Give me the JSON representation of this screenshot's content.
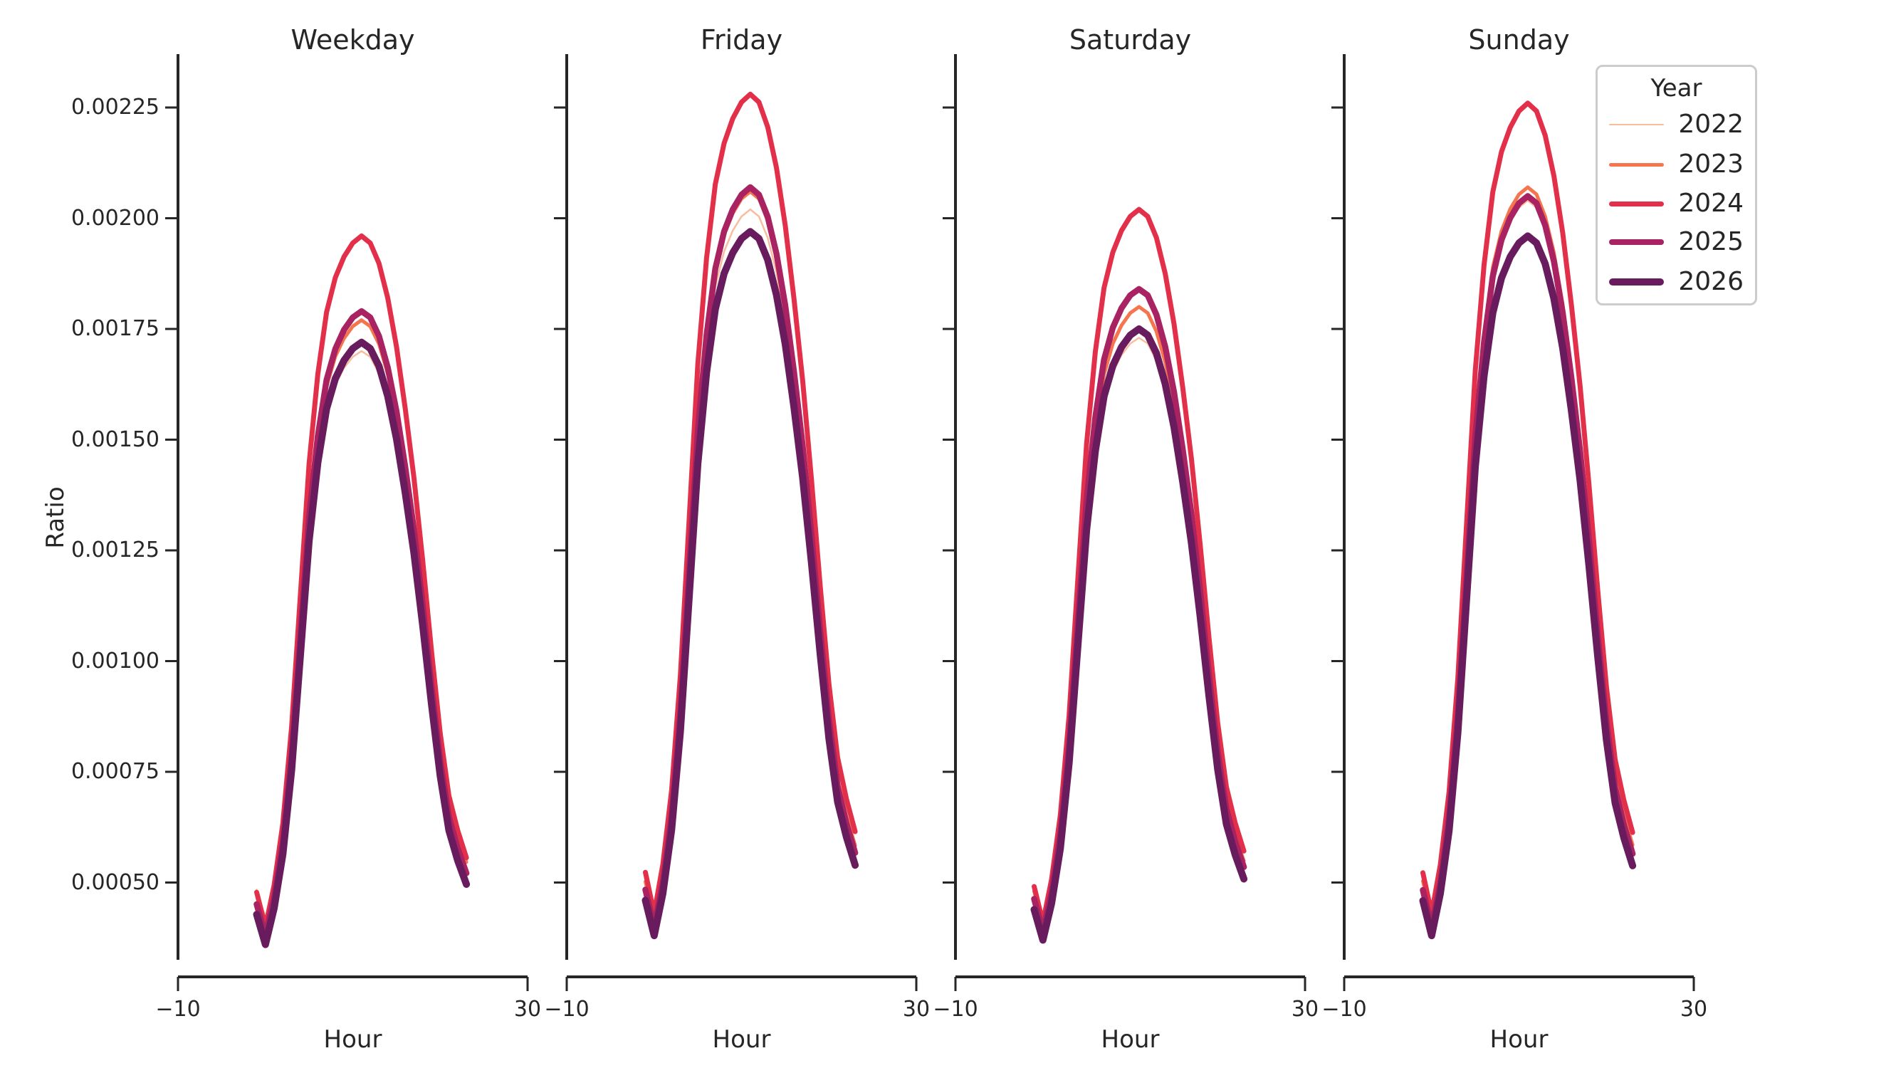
{
  "figure": {
    "background": "#ffffff",
    "text_color": "#262626",
    "axis_color": "#262626"
  },
  "axes": {
    "x_label": "Hour",
    "y_label": "Ratio",
    "x_ticks": [
      {
        "label": "−10",
        "value": -10
      },
      {
        "label": "30",
        "value": 30
      }
    ],
    "y_ticks": [
      {
        "label": "0.00225",
        "value": 0.00225
      },
      {
        "label": "0.00200",
        "value": 0.002
      },
      {
        "label": "0.00175",
        "value": 0.00175
      },
      {
        "label": "0.00150",
        "value": 0.0015
      },
      {
        "label": "0.00125",
        "value": 0.00125
      },
      {
        "label": "0.00100",
        "value": 0.001
      },
      {
        "label": "0.00075",
        "value": 0.00075
      },
      {
        "label": "0.00050",
        "value": 0.0005
      }
    ]
  },
  "legend": {
    "title": "Year",
    "entries": [
      {
        "label": "2022",
        "color": "#f9bd9d",
        "linewidth": 2.5
      },
      {
        "label": "2023",
        "color": "#f5764e",
        "linewidth": 5
      },
      {
        "label": "2024",
        "color": "#e3304a",
        "linewidth": 7
      },
      {
        "label": "2025",
        "color": "#a92262",
        "linewidth": 8.5
      },
      {
        "label": "2026",
        "color": "#681c5e",
        "linewidth": 10
      }
    ]
  },
  "chart_data": {
    "type": "line",
    "title": "",
    "xlabel": "Hour",
    "ylabel": "Ratio",
    "xlim": [
      -10,
      30
    ],
    "ylim": [
      0.0003,
      0.00236
    ],
    "grid": false,
    "legend_title": "Year",
    "legend_position": "upper right",
    "x": [
      -1,
      0,
      1,
      2,
      3,
      4,
      5,
      6,
      7,
      8,
      9,
      10,
      11,
      12,
      13,
      14,
      15,
      16,
      17,
      18,
      19,
      20,
      21,
      22,
      23
    ],
    "facets": [
      {
        "title": "Weekday",
        "series": [
          {
            "name": "2022",
            "color": "#f9bd9d",
            "linewidth": 2.5,
            "values": [
              0.000484,
              0.00042,
              0.000497,
              0.000612,
              0.000791,
              0.001034,
              0.001278,
              0.001444,
              0.001559,
              0.001623,
              0.001662,
              0.001687,
              0.0017,
              0.001687,
              0.001649,
              0.001585,
              0.001495,
              0.00138,
              0.001252,
              0.001098,
              0.000932,
              0.000778,
              0.000663,
              0.000599,
              0.000548
            ]
          },
          {
            "name": "2023",
            "color": "#f5764e",
            "linewidth": 5,
            "values": [
              0.000478,
              0.00041,
              0.000492,
              0.000614,
              0.000804,
              0.001063,
              0.001321,
              0.001498,
              0.00162,
              0.001688,
              0.001729,
              0.001756,
              0.00177,
              0.001756,
              0.001716,
              0.001648,
              0.001552,
              0.00143,
              0.001294,
              0.001131,
              0.000954,
              0.000791,
              0.000668,
              0.0006,
              0.000546
            ]
          },
          {
            "name": "2024",
            "color": "#e3304a",
            "linewidth": 7,
            "values": [
              0.000478,
              0.0004,
              0.000494,
              0.000634,
              0.000852,
              0.001149,
              0.001445,
              0.001648,
              0.001788,
              0.001866,
              0.001913,
              0.001944,
              0.00196,
              0.001944,
              0.001898,
              0.00182,
              0.00171,
              0.00157,
              0.001414,
              0.001227,
              0.001024,
              0.000837,
              0.000696,
              0.000618,
              0.000556
            ]
          },
          {
            "name": "2025",
            "color": "#a92262",
            "linewidth": 8.5,
            "values": [
              0.000451,
              0.00038,
              0.000465,
              0.000592,
              0.000789,
              0.001057,
              0.001325,
              0.001508,
              0.001635,
              0.001705,
              0.001748,
              0.001776,
              0.00179,
              0.001776,
              0.001734,
              0.001663,
              0.001564,
              0.001438,
              0.001297,
              0.001127,
              0.000944,
              0.000775,
              0.000648,
              0.000577,
              0.000521
            ]
          },
          {
            "name": "2026",
            "color": "#681c5e",
            "linewidth": 10,
            "values": [
              0.000428,
              0.00036,
              0.000442,
              0.000564,
              0.000754,
              0.001013,
              0.001271,
              0.001448,
              0.00157,
              0.001638,
              0.001679,
              0.001706,
              0.00172,
              0.001706,
              0.001666,
              0.001598,
              0.001502,
              0.00138,
              0.001244,
              0.001081,
              0.000904,
              0.000741,
              0.000618,
              0.00055,
              0.000496
            ]
          }
        ]
      },
      {
        "title": "Friday",
        "series": [
          {
            "name": "2022",
            "color": "#f9bd9d",
            "linewidth": 2.5,
            "values": [
              0.00051,
              0.00043,
              0.000525,
              0.000669,
              0.000891,
              0.001193,
              0.001495,
              0.001702,
              0.001845,
              0.001925,
              0.001972,
              0.002004,
              0.00202,
              0.002004,
              0.001956,
              0.001877,
              0.001766,
              0.001623,
              0.001464,
              0.001273,
              0.001066,
              0.000875,
              0.000732,
              0.000653,
              0.000589
            ]
          },
          {
            "name": "2023",
            "color": "#f5764e",
            "linewidth": 5,
            "values": [
              0.000502,
              0.00042,
              0.000518,
              0.000666,
              0.000896,
              0.001207,
              0.001519,
              0.001732,
              0.00188,
              0.001962,
              0.002011,
              0.002044,
              0.00206,
              0.002044,
              0.001994,
              0.001912,
              0.001798,
              0.00165,
              0.001486,
              0.001289,
              0.001076,
              0.000879,
              0.000732,
              0.00065,
              0.000584
            ]
          },
          {
            "name": "2024",
            "color": "#e3304a",
            "linewidth": 7,
            "values": [
              0.000523,
              0.00043,
              0.000541,
              0.000708,
              0.000967,
              0.001318,
              0.00167,
              0.00191,
              0.002077,
              0.002169,
              0.002225,
              0.002262,
              0.00228,
              0.002262,
              0.002206,
              0.002114,
              0.001984,
              0.001818,
              0.001633,
              0.001411,
              0.00117,
              0.000948,
              0.000782,
              0.000689,
              0.000615
            ]
          },
          {
            "name": "2025",
            "color": "#a92262",
            "linewidth": 8.5,
            "values": [
              0.000484,
              0.0004,
              0.0005,
              0.000651,
              0.000884,
              0.001202,
              0.001519,
              0.001736,
              0.001886,
              0.00197,
              0.00202,
              0.002053,
              0.00207,
              0.002053,
              0.002003,
              0.00192,
              0.001803,
              0.001653,
              0.001486,
              0.001285,
              0.001068,
              0.000868,
              0.000717,
              0.000634,
              0.000567
            ]
          },
          {
            "name": "2026",
            "color": "#681c5e",
            "linewidth": 10,
            "values": [
              0.00046,
              0.00038,
              0.000475,
              0.000619,
              0.000841,
              0.001143,
              0.001445,
              0.001652,
              0.001795,
              0.001875,
              0.001922,
              0.001954,
              0.00197,
              0.001954,
              0.001906,
              0.001827,
              0.001716,
              0.001573,
              0.001414,
              0.001223,
              0.001016,
              0.000825,
              0.000682,
              0.000603,
              0.000539
            ]
          }
        ]
      },
      {
        "title": "Saturday",
        "series": [
          {
            "name": "2022",
            "color": "#f9bd9d",
            "linewidth": 2.5,
            "values": [
              0.000486,
              0.00042,
              0.000499,
              0.000617,
              0.0008,
              0.001049,
              0.001298,
              0.001468,
              0.001586,
              0.001651,
              0.001691,
              0.001717,
              0.00173,
              0.001717,
              0.001678,
              0.001612,
              0.00152,
              0.001403,
              0.001272,
              0.001114,
              0.000944,
              0.000787,
              0.000669,
              0.000603,
              0.000551
            ]
          },
          {
            "name": "2023",
            "color": "#f5764e",
            "linewidth": 5,
            "values": [
              0.00048,
              0.00041,
              0.000493,
              0.000619,
              0.000813,
              0.001077,
              0.001341,
              0.001522,
              0.001647,
              0.001717,
              0.001758,
              0.001786,
              0.0018,
              0.001786,
              0.001744,
              0.001675,
              0.001578,
              0.001453,
              0.001314,
              0.001147,
              0.000966,
              0.000799,
              0.000674,
              0.000605,
              0.000549
            ]
          },
          {
            "name": "2024",
            "color": "#e3304a",
            "linewidth": 7,
            "values": [
              0.000491,
              0.00041,
              0.000507,
              0.000652,
              0.000877,
              0.001183,
              0.001489,
              0.001698,
              0.001843,
              0.001923,
              0.001972,
              0.002004,
              0.00202,
              0.002004,
              0.001956,
              0.001875,
              0.001762,
              0.001618,
              0.001457,
              0.001263,
              0.001054,
              0.000861,
              0.000716,
              0.000635,
              0.000571
            ]
          },
          {
            "name": "2025",
            "color": "#a92262",
            "linewidth": 8.5,
            "values": [
              0.000463,
              0.00039,
              0.000477,
              0.000608,
              0.000811,
              0.001086,
              0.001362,
              0.00155,
              0.001681,
              0.001753,
              0.001797,
              0.001826,
              0.00184,
              0.001826,
              0.001782,
              0.00171,
              0.001608,
              0.001478,
              0.001333,
              0.001159,
              0.00097,
              0.000796,
              0.000666,
              0.000593,
              0.000535
            ]
          },
          {
            "name": "2026",
            "color": "#681c5e",
            "linewidth": 10,
            "values": [
              0.000439,
              0.00037,
              0.000453,
              0.000577,
              0.00077,
              0.001032,
              0.001295,
              0.001474,
              0.001598,
              0.001667,
              0.001709,
              0.001736,
              0.00175,
              0.001736,
              0.001695,
              0.001626,
              0.001529,
              0.001405,
              0.001267,
              0.001101,
              0.000922,
              0.000756,
              0.000632,
              0.000563,
              0.000508
            ]
          }
        ]
      },
      {
        "title": "Sunday",
        "series": [
          {
            "name": "2022",
            "color": "#f9bd9d",
            "linewidth": 2.5,
            "values": [
              0.000511,
              0.00043,
              0.000527,
              0.000672,
              0.000897,
              0.001203,
              0.001509,
              0.001718,
              0.001863,
              0.001943,
              0.001992,
              0.002024,
              0.00204,
              0.002024,
              0.001976,
              0.001895,
              0.001782,
              0.001638,
              0.001477,
              0.001283,
              0.001074,
              0.000881,
              0.000736,
              0.000655,
              0.000591
            ]
          },
          {
            "name": "2023",
            "color": "#f5764e",
            "linewidth": 5,
            "values": [
              0.000503,
              0.00042,
              0.000519,
              0.000668,
              0.000899,
              0.001212,
              0.001526,
              0.00174,
              0.001889,
              0.001971,
              0.002021,
              0.002054,
              0.00207,
              0.002054,
              0.002004,
              0.001922,
              0.001806,
              0.001658,
              0.001493,
              0.001295,
              0.00108,
              0.000882,
              0.000734,
              0.000651,
              0.000585
            ]
          },
          {
            "name": "2024",
            "color": "#e3304a",
            "linewidth": 7,
            "values": [
              0.000522,
              0.00043,
              0.00054,
              0.000705,
              0.000961,
              0.001308,
              0.001656,
              0.001894,
              0.002059,
              0.00215,
              0.002205,
              0.002242,
              0.00226,
              0.002242,
              0.002187,
              0.002095,
              0.001967,
              0.001803,
              0.00162,
              0.0014,
              0.001162,
              0.000942,
              0.000778,
              0.000686,
              0.000613
            ]
          },
          {
            "name": "2025",
            "color": "#a92262",
            "linewidth": 8.5,
            "values": [
              0.000483,
              0.0004,
              0.000499,
              0.000648,
              0.000879,
              0.001192,
              0.001506,
              0.00172,
              0.001869,
              0.001951,
              0.002001,
              0.002034,
              0.00205,
              0.002034,
              0.001984,
              0.001902,
              0.001786,
              0.001638,
              0.001473,
              0.001275,
              0.00106,
              0.000862,
              0.000714,
              0.000631,
              0.000565
            ]
          },
          {
            "name": "2026",
            "color": "#681c5e",
            "linewidth": 10,
            "values": [
              0.000459,
              0.00038,
              0.000475,
              0.000617,
              0.000838,
              0.001138,
              0.001439,
              0.001644,
              0.001786,
              0.001865,
              0.001913,
              0.001944,
              0.00196,
              0.001944,
              0.001897,
              0.001818,
              0.001707,
              0.001565,
              0.001407,
              0.001217,
              0.001012,
              0.000822,
              0.00068,
              0.000601,
              0.000538
            ]
          }
        ]
      }
    ]
  }
}
